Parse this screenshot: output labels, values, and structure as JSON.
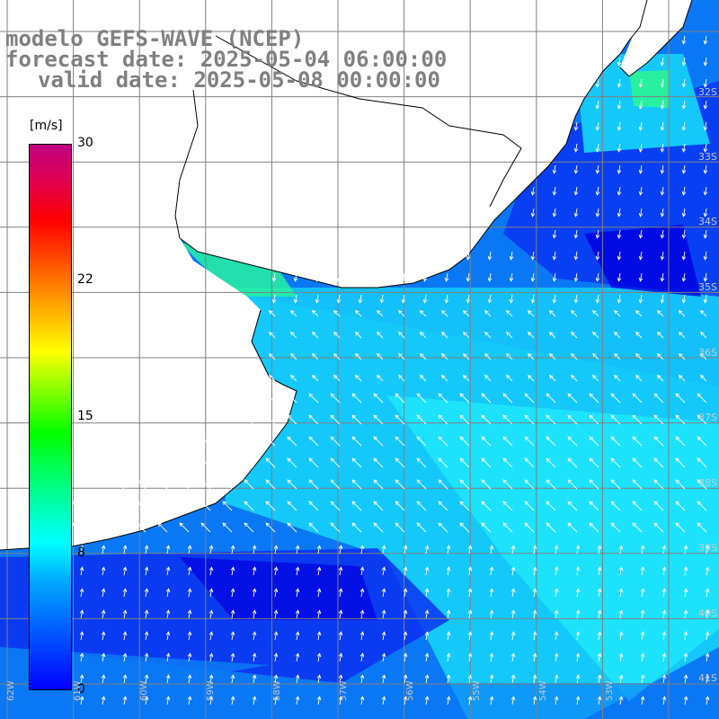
{
  "titles": {
    "line1": "modelo GEFS-WAVE (NCEP)",
    "line2": "forecast date: 2025-05-04 06:00:00",
    "line3": "valid date: 2025-05-08 00:00:00"
  },
  "colorbar": {
    "unit": "[m/s]",
    "ticks": [
      {
        "label": "30",
        "value": 30
      },
      {
        "label": "22",
        "value": 22
      },
      {
        "label": "15",
        "value": 15
      },
      {
        "label": "8",
        "value": 8
      },
      {
        "label": "0",
        "value": 0
      }
    ],
    "colors": [
      "#0000ff",
      "#0055ff",
      "#00aaff",
      "#00ffff",
      "#00ff88",
      "#00ff00",
      "#ffff00",
      "#ff5500",
      "#ff0000",
      "#c00080"
    ]
  },
  "map": {
    "variable": "wind speed",
    "lat_labels": [
      "32S",
      "33S",
      "34S",
      "35S",
      "36S",
      "37S",
      "38S",
      "39S",
      "40S",
      "41S"
    ],
    "lon_labels": [
      "62W",
      "61W",
      "60W",
      "59W",
      "58W",
      "57W",
      "56W",
      "55W",
      "54W",
      "53W"
    ],
    "colors": {
      "ocean_dark": "#0a2cf0",
      "ocean_mid": "#0a78f5",
      "ocean_light": "#14c8fa",
      "ocean_cyan": "#1ee6fa",
      "ocean_green": "#28f0a0",
      "land": "#ffffff",
      "coast": "#000000",
      "grid": "#808080",
      "arrow": "#ffffff"
    }
  }
}
